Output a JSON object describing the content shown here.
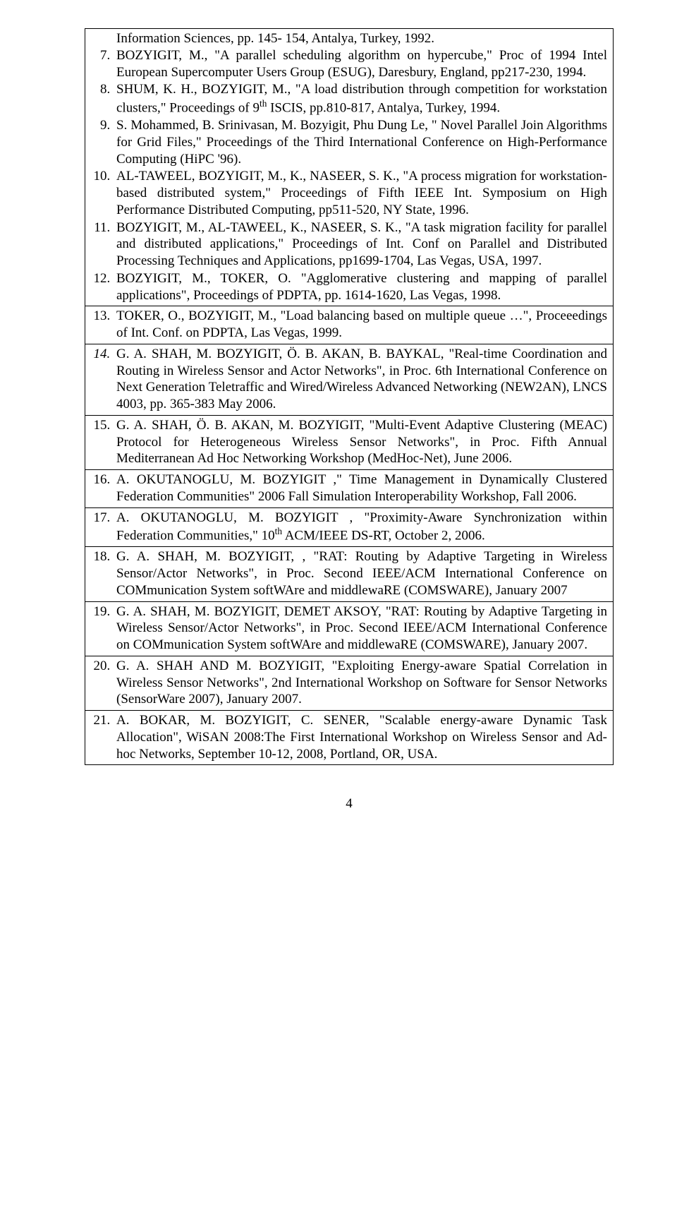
{
  "pageNumber": "4",
  "cell1": {
    "start": 6,
    "items": [
      "Information Sciences, pp. 145- 154, Antalya, Turkey, 1992.",
      "BOZYIGIT, M., \"A parallel scheduling algorithm on hypercube,\" Proc of 1994 Intel European Supercomputer Users Group (ESUG), Daresbury, England, pp217-230, 1994.",
      "SHUM, K. H., BOZYIGIT, M., \"A load distribution through competition for workstation clusters,\" Proceedings of 9<sup>th</sup> ISCIS, pp.810-817, Antalya, Turkey, 1994.",
      "S. Mohammed, B. Srinivasan, M. Bozyigit, Phu Dung Le, \" Novel Parallel Join Algorithms for Grid Files,\" Proceedings of the Third International Conference on High-Performance Computing (HiPC '96).",
      "AL-TAWEEL, BOZYIGIT, M., K., NASEER, S. K., \"A process migration for workstation-based distributed system,\" Proceedings of Fifth IEEE Int. Symposium on High Performance Distributed Computing, pp511-520, NY State, 1996.",
      "BOZYIGIT, M., AL-TAWEEL, K., NASEER, S. K., \"A task migration facility for parallel and distributed applications,\" Proceedings of Int. Conf on Parallel and Distributed Processing Techniques and Applications, pp1699-1704, Las Vegas, USA, 1997.",
      "BOZYIGIT, M., TOKER, O. \"Agglomerative clustering and mapping of parallel applications\", Proceedings of PDPTA, pp. 1614-1620, Las Vegas, 1998."
    ],
    "first_continuation": true
  },
  "cell2": {
    "start": 13,
    "text": "TOKER, O., BOZYIGIT, M., \"Load balancing based on multiple queue …\", Proceeedings of Int. Conf. on PDPTA, Las Vegas, 1999."
  },
  "cell3": {
    "start": 14,
    "italic_num": true,
    "text": "G. A. SHAH, M. BOZYIGIT, Ö. B. AKAN, B. BAYKAL, \"Real-time Coordination and Routing in Wireless Sensor and Actor Networks\", in Proc. 6th International Conference on Next Generation Teletraffic and Wired/Wireless Advanced Networking (NEW2AN), LNCS 4003, pp. 365-383 May 2006."
  },
  "cell4": {
    "start": 15,
    "text": "G. A. SHAH, Ö. B. AKAN, M. BOZYIGIT, \"Multi-Event Adaptive Clustering (MEAC) Protocol for Heterogeneous Wireless Sensor Networks\", in Proc. Fifth Annual Mediterranean Ad Hoc Networking Workshop (MedHoc-Net), June 2006."
  },
  "cell5": {
    "start": 16,
    "text": "A. OKUTANOGLU, M. BOZYIGIT ,\" Time Management in Dynamically Clustered Federation Communities\" 2006 Fall Simulation Interoperability Workshop, Fall 2006."
  },
  "cell6": {
    "start": 17,
    "text": "A. OKUTANOGLU, M. BOZYIGIT , \"Proximity-Aware Synchronization within Federation Communities,\" 10<sup>th</sup> ACM/IEEE DS-RT, October 2, 2006."
  },
  "cell7": {
    "start": 18,
    "text": "G. A. SHAH, M. BOZYIGIT, , \"RAT: Routing by Adaptive Targeting in Wireless Sensor/Actor Networks\", in Proc. Second IEEE/ACM International Conference on COMmunication System softWAre and middlewaRE (COMSWARE), January 2007"
  },
  "cell8": {
    "start": 19,
    "text": "G. A. SHAH, M. BOZYIGIT, DEMET AKSOY, \"RAT: Routing by Adaptive Targeting in Wireless Sensor/Actor Networks\", in Proc. Second IEEE/ACM International Conference on COMmunication System softWAre and middlewaRE (COMSWARE), January 2007."
  },
  "cell9": {
    "start": 20,
    "text": "G. A. SHAH AND M. BOZYIGIT, \"Exploiting Energy-aware Spatial Correlation in Wireless Sensor Networks\", 2nd International Workshop on Software for Sensor Networks (SensorWare 2007), January 2007."
  },
  "cell10": {
    "start": 21,
    "text": "A. BOKAR, M. BOZYIGIT, C. SENER, \"Scalable energy-aware Dynamic Task Allocation\", WiSAN 2008:The First International Workshop on Wireless Sensor and Ad-hoc Networks, September 10-12, 2008, Portland, OR, USA."
  }
}
